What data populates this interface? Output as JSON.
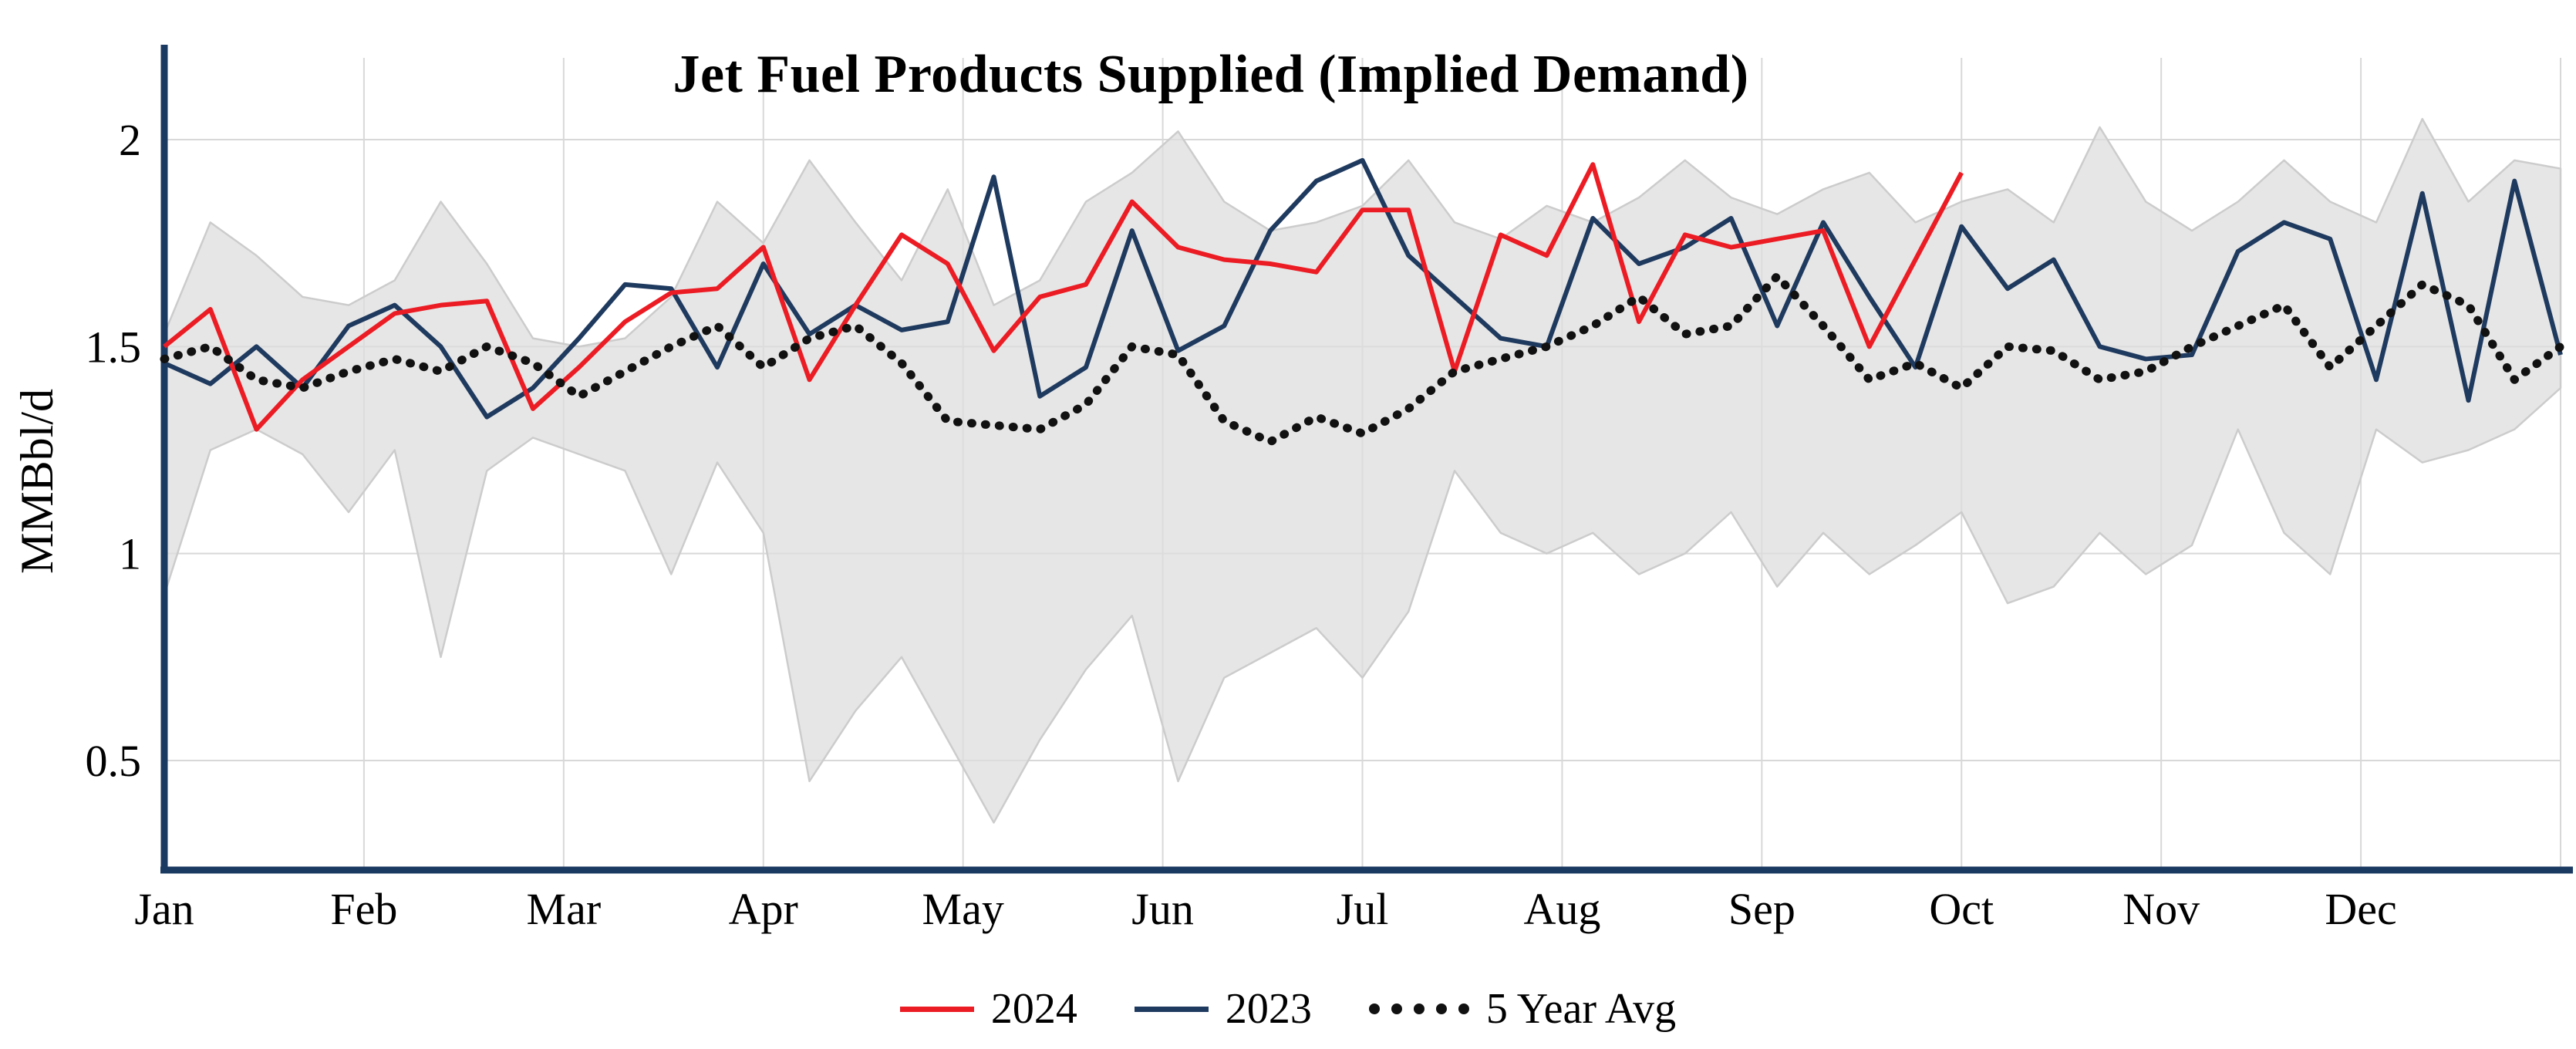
{
  "chart_data": {
    "type": "line",
    "title": "Jet Fuel Products Supplied (Implied Demand)",
    "ylabel": "MMBbl/d",
    "xlabel": "",
    "months": [
      "Jan",
      "Feb",
      "Mar",
      "Apr",
      "May",
      "Jun",
      "Jul",
      "Aug",
      "Sep",
      "Oct",
      "Nov",
      "Dec"
    ],
    "weeks_per_year": 52,
    "yticks": [
      {
        "value": 0.5,
        "label": "0.5"
      },
      {
        "value": 1,
        "label": "1"
      },
      {
        "value": 1.5,
        "label": "1.5"
      },
      {
        "value": 2,
        "label": "2"
      }
    ],
    "ylim": [
      0.25,
      2.2
    ],
    "grid": true,
    "grid_color": "#d8d8d8",
    "axis_color": "#1b3a62",
    "legend_position": "bottom",
    "band": {
      "color": "#dedede",
      "edge_color": "#cccccc",
      "upper": [
        1.53,
        1.8,
        1.72,
        1.62,
        1.6,
        1.66,
        1.85,
        1.7,
        1.52,
        1.5,
        1.52,
        1.62,
        1.85,
        1.75,
        1.95,
        1.8,
        1.66,
        1.88,
        1.6,
        1.66,
        1.85,
        1.92,
        2.02,
        1.85,
        1.78,
        1.8,
        1.84,
        1.95,
        1.8,
        1.76,
        1.84,
        1.8,
        1.86,
        1.95,
        1.86,
        1.82,
        1.88,
        1.92,
        1.8,
        1.85,
        1.88,
        1.8,
        2.03,
        1.85,
        1.78,
        1.85,
        1.95,
        1.85,
        1.8,
        2.05,
        1.85,
        1.95,
        1.93
      ],
      "lower": [
        0.9,
        1.25,
        1.3,
        1.24,
        1.1,
        1.25,
        0.75,
        1.2,
        1.28,
        1.24,
        1.2,
        0.95,
        1.22,
        1.05,
        0.45,
        0.62,
        0.75,
        0.55,
        0.35,
        0.55,
        0.72,
        0.85,
        0.45,
        0.7,
        0.76,
        0.82,
        0.7,
        0.86,
        1.2,
        1.05,
        1.0,
        1.05,
        0.95,
        1.0,
        1.1,
        0.92,
        1.05,
        0.95,
        1.02,
        1.1,
        0.88,
        0.92,
        1.05,
        0.95,
        1.02,
        1.3,
        1.05,
        0.95,
        1.3,
        1.22,
        1.25,
        1.3,
        1.4
      ]
    },
    "series": [
      {
        "name": "2024",
        "color": "#ec1c24",
        "style": "solid",
        "values": [
          1.5,
          1.59,
          1.3,
          1.42,
          1.5,
          1.58,
          1.6,
          1.61,
          1.35,
          1.45,
          1.56,
          1.63,
          1.64,
          1.74,
          1.42,
          1.6,
          1.77,
          1.7,
          1.49,
          1.62,
          1.65,
          1.85,
          1.74,
          1.71,
          1.7,
          1.68,
          1.83,
          1.83,
          1.44,
          1.77,
          1.72,
          1.94,
          1.56,
          1.77,
          1.74,
          1.76,
          1.78,
          1.5,
          1.71,
          1.92
        ]
      },
      {
        "name": "2023",
        "color": "#1f3a5f",
        "style": "solid",
        "values": [
          1.46,
          1.41,
          1.5,
          1.4,
          1.55,
          1.6,
          1.5,
          1.33,
          1.4,
          1.52,
          1.65,
          1.64,
          1.45,
          1.7,
          1.53,
          1.6,
          1.54,
          1.56,
          1.91,
          1.38,
          1.45,
          1.78,
          1.49,
          1.55,
          1.78,
          1.9,
          1.95,
          1.72,
          1.62,
          1.52,
          1.5,
          1.81,
          1.7,
          1.74,
          1.81,
          1.55,
          1.8,
          1.62,
          1.45,
          1.79,
          1.64,
          1.71,
          1.5,
          1.47,
          1.48,
          1.73,
          1.8,
          1.76,
          1.42,
          1.87,
          1.37,
          1.9,
          1.48
        ]
      },
      {
        "name": "5 Year Avg",
        "color": "#111111",
        "style": "dotted",
        "values": [
          1.47,
          1.5,
          1.42,
          1.4,
          1.44,
          1.47,
          1.44,
          1.5,
          1.46,
          1.38,
          1.44,
          1.5,
          1.55,
          1.45,
          1.52,
          1.55,
          1.46,
          1.32,
          1.31,
          1.3,
          1.36,
          1.5,
          1.48,
          1.32,
          1.27,
          1.33,
          1.29,
          1.35,
          1.44,
          1.47,
          1.5,
          1.55,
          1.62,
          1.53,
          1.55,
          1.67,
          1.55,
          1.42,
          1.46,
          1.4,
          1.5,
          1.49,
          1.42,
          1.44,
          1.5,
          1.55,
          1.6,
          1.45,
          1.55,
          1.65,
          1.6,
          1.42,
          1.5
        ]
      }
    ]
  }
}
